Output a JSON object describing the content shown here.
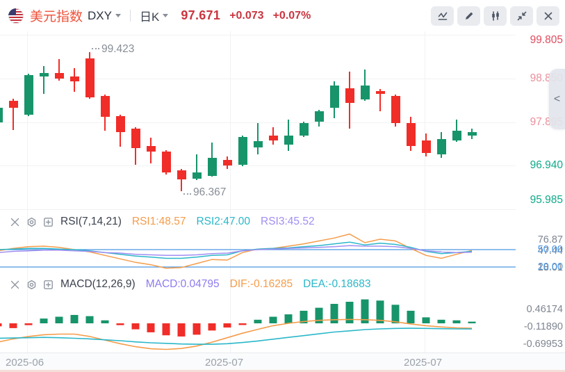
{
  "header": {
    "title": "美元指数",
    "title_color": "#f0513a",
    "symbol": "DXY",
    "period_selector": "日K",
    "price": "97.671",
    "change": "+0.073",
    "change_pct": "+0.07%",
    "price_color": "#c9353f",
    "toolbar_icons": [
      "trend-line",
      "draw-pencil",
      "candlestick-style",
      "collapse",
      "close"
    ]
  },
  "main_chart": {
    "collapse_tab_label": "<",
    "price_labels": [
      {
        "text": "99.805",
        "value": 99.805,
        "color": "#e04a5e"
      },
      {
        "text": "98.850",
        "value": 98.85,
        "color": "#ea8f9c"
      },
      {
        "text": "97.895",
        "value": 97.895,
        "color": "#ea8f9c"
      },
      {
        "text": "96.940",
        "value": 96.94,
        "color": "#0ea98a"
      },
      {
        "text": "95.985",
        "value": 95.985,
        "color": "#0ea98a"
      }
    ]
  },
  "rsi_panel": {
    "title": "RSI(7,14,21)",
    "values": [
      {
        "text": "RSI1:48.57",
        "color": "#f59c4a"
      },
      {
        "text": "RSI2:47.00",
        "color": "#2ab7c9"
      },
      {
        "text": "RSI3:45.52",
        "color": "#a18ef2"
      }
    ],
    "range_labels": [
      {
        "text": "76.87",
        "value": 76.87
      },
      {
        "text": "47.44",
        "value": 47.44
      },
      {
        "text": "18.01",
        "value": 18.01
      }
    ],
    "guide_labels": [
      {
        "text": "50.00",
        "value": 50
      },
      {
        "text": "20.00",
        "value": 20
      }
    ],
    "guide_color": "#4a96e2",
    "label_color": "#7e8590"
  },
  "macd_panel": {
    "title": "MACD(12,26,9)",
    "values": [
      {
        "text": "MACD:0.04795",
        "color": "#8d7bf0"
      },
      {
        "text": "DIF:-0.16285",
        "color": "#f59c4a"
      },
      {
        "text": "DEA:-0.18683",
        "color": "#2ab7c9"
      }
    ],
    "axis_labels": [
      {
        "text": "0.46174",
        "value": 0.46174
      },
      {
        "text": "-0.11890",
        "value": -0.1189
      },
      {
        "text": "-0.69953",
        "value": -0.69953
      }
    ],
    "label_color": "#7e8590"
  },
  "x_axis": {
    "labels": [
      "2025-06",
      "2025-07",
      "2025-07"
    ],
    "color": "#9aa1ab"
  },
  "chart_data": {
    "type": "candlestick",
    "symbol": "DXY",
    "interval": "daily",
    "price_ticks": [
      99.805,
      98.85,
      97.895,
      96.94,
      95.985
    ],
    "colors": {
      "up": "#17946a",
      "down": "#f02d28",
      "grid": "#f1f2f4",
      "rsi1": "#f59c4a",
      "rsi2": "#2ab7c9",
      "rsi3": "#a18ef2",
      "dif": "#f59c4a",
      "dea": "#2ab7c9",
      "guide": "#4a96e2"
    },
    "annotations": [
      {
        "text": "99.423",
        "candle": 6,
        "side": "high",
        "price": 99.423
      },
      {
        "text": "96.367",
        "candle": 12,
        "side": "low",
        "price": 96.367
      }
    ],
    "candles": [
      {
        "o": 97.88,
        "h": 98.26,
        "l": 97.84,
        "c": 98.21
      },
      {
        "o": 98.36,
        "h": 98.41,
        "l": 97.72,
        "c": 98.21
      },
      {
        "o": 98.06,
        "h": 98.96,
        "l": 98.02,
        "c": 98.93
      },
      {
        "o": 98.9,
        "h": 99.12,
        "l": 98.51,
        "c": 98.97
      },
      {
        "o": 98.97,
        "h": 99.28,
        "l": 98.81,
        "c": 98.85
      },
      {
        "o": 98.9,
        "h": 99.08,
        "l": 98.56,
        "c": 98.79
      },
      {
        "o": 99.29,
        "h": 99.423,
        "l": 98.4,
        "c": 98.44
      },
      {
        "o": 98.47,
        "h": 98.5,
        "l": 97.7,
        "c": 98.01
      },
      {
        "o": 98.02,
        "h": 98.05,
        "l": 97.35,
        "c": 97.67
      },
      {
        "o": 97.75,
        "h": 97.78,
        "l": 96.96,
        "c": 97.32
      },
      {
        "o": 97.37,
        "h": 97.55,
        "l": 96.99,
        "c": 97.25
      },
      {
        "o": 97.25,
        "h": 97.28,
        "l": 96.74,
        "c": 96.79
      },
      {
        "o": 96.83,
        "h": 96.87,
        "l": 96.367,
        "c": 96.63
      },
      {
        "o": 96.65,
        "h": 97.18,
        "l": 96.62,
        "c": 96.79
      },
      {
        "o": 96.71,
        "h": 97.44,
        "l": 96.69,
        "c": 97.11
      },
      {
        "o": 97.06,
        "h": 97.14,
        "l": 96.86,
        "c": 96.94
      },
      {
        "o": 96.95,
        "h": 97.6,
        "l": 96.93,
        "c": 97.57
      },
      {
        "o": 97.34,
        "h": 97.87,
        "l": 97.18,
        "c": 97.47
      },
      {
        "o": 97.6,
        "h": 97.78,
        "l": 97.4,
        "c": 97.49
      },
      {
        "o": 97.4,
        "h": 97.95,
        "l": 97.26,
        "c": 97.6
      },
      {
        "o": 97.6,
        "h": 97.9,
        "l": 97.57,
        "c": 97.87
      },
      {
        "o": 97.9,
        "h": 98.16,
        "l": 97.8,
        "c": 98.13
      },
      {
        "o": 98.21,
        "h": 98.79,
        "l": 97.98,
        "c": 98.7
      },
      {
        "o": 98.64,
        "h": 99.0,
        "l": 97.75,
        "c": 98.32
      },
      {
        "o": 98.39,
        "h": 99.05,
        "l": 98.36,
        "c": 98.7
      },
      {
        "o": 98.58,
        "h": 98.62,
        "l": 98.13,
        "c": 98.52
      },
      {
        "o": 98.47,
        "h": 98.5,
        "l": 97.8,
        "c": 97.87
      },
      {
        "o": 97.87,
        "h": 98.01,
        "l": 97.26,
        "c": 97.37
      },
      {
        "o": 97.49,
        "h": 97.64,
        "l": 97.14,
        "c": 97.21
      },
      {
        "o": 97.18,
        "h": 97.67,
        "l": 97.11,
        "c": 97.52
      },
      {
        "o": 97.49,
        "h": 97.95,
        "l": 97.46,
        "c": 97.7
      },
      {
        "o": 97.6,
        "h": 97.75,
        "l": 97.52,
        "c": 97.671
      }
    ],
    "rsi": {
      "params": [
        7,
        14,
        21
      ],
      "current": [
        48.57,
        47.0,
        45.52
      ],
      "guides": [
        50,
        20
      ],
      "series1": [
        48,
        52,
        55,
        56,
        54,
        50,
        46,
        40,
        34,
        28,
        24,
        18.01,
        19,
        26,
        33,
        32,
        45,
        51,
        52,
        56,
        60,
        65,
        70,
        76.87,
        62,
        68,
        65,
        52,
        40,
        35,
        42,
        48.57
      ],
      "series2": [
        50,
        51,
        52,
        52,
        51,
        50,
        48,
        45,
        42,
        39,
        37,
        35,
        35,
        37,
        40,
        41,
        48,
        51,
        52,
        53,
        55,
        57,
        60,
        63,
        58,
        61,
        59,
        54,
        47,
        43,
        45,
        47.0
      ],
      "series3": [
        45,
        47,
        48,
        49,
        49,
        48,
        47,
        45,
        44,
        42,
        41,
        40,
        40,
        41,
        43,
        44,
        48,
        50,
        51,
        52,
        53,
        54,
        55,
        57,
        56,
        56,
        55,
        52,
        48,
        46,
        45,
        45.52
      ]
    },
    "macd": {
      "params": [
        12,
        26,
        9
      ],
      "current": {
        "macd": 0.04795,
        "dif": -0.16285,
        "dea": -0.18683
      },
      "ticks": [
        0.46174,
        -0.1189,
        -0.69953
      ],
      "histogram": [
        -0.1,
        -0.16,
        -0.06,
        0.16,
        0.22,
        0.28,
        0.24,
        0.1,
        -0.06,
        -0.2,
        -0.3,
        -0.4,
        -0.44,
        -0.38,
        -0.24,
        -0.14,
        -0.05,
        0.12,
        0.22,
        0.3,
        0.42,
        0.52,
        0.65,
        0.72,
        0.8,
        0.76,
        0.62,
        0.42,
        0.2,
        0.12,
        0.1,
        0.048
      ],
      "dif": [
        -0.63,
        -0.52,
        -0.44,
        -0.38,
        -0.36,
        -0.36,
        -0.44,
        -0.56,
        -0.68,
        -0.78,
        -0.85,
        -0.87,
        -0.84,
        -0.76,
        -0.63,
        -0.48,
        -0.33,
        -0.2,
        -0.08,
        0.0,
        0.06,
        0.1,
        0.12,
        0.13,
        0.12,
        0.1,
        0.05,
        -0.02,
        -0.08,
        -0.12,
        -0.15,
        -0.163
      ],
      "dea": [
        -0.5,
        -0.49,
        -0.48,
        -0.47,
        -0.48,
        -0.5,
        -0.52,
        -0.55,
        -0.58,
        -0.62,
        -0.65,
        -0.67,
        -0.69,
        -0.7,
        -0.7,
        -0.68,
        -0.64,
        -0.59,
        -0.53,
        -0.47,
        -0.41,
        -0.35,
        -0.29,
        -0.25,
        -0.21,
        -0.185,
        -0.17,
        -0.165,
        -0.17,
        -0.18,
        -0.185,
        -0.187
      ]
    }
  }
}
